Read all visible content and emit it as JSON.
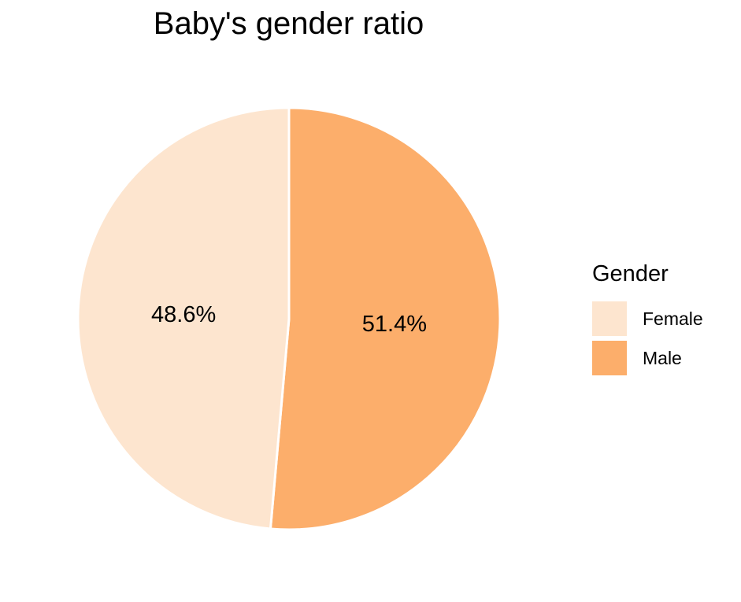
{
  "chart_data": {
    "type": "pie",
    "title": "Baby's gender ratio",
    "legend_title": "Gender",
    "legend_position": "right",
    "categories": [
      "Female",
      "Male"
    ],
    "values": [
      48.6,
      51.4
    ],
    "labels": [
      "48.6%",
      "51.4%"
    ],
    "colors": [
      "#fde5cf",
      "#fcae6b"
    ]
  }
}
